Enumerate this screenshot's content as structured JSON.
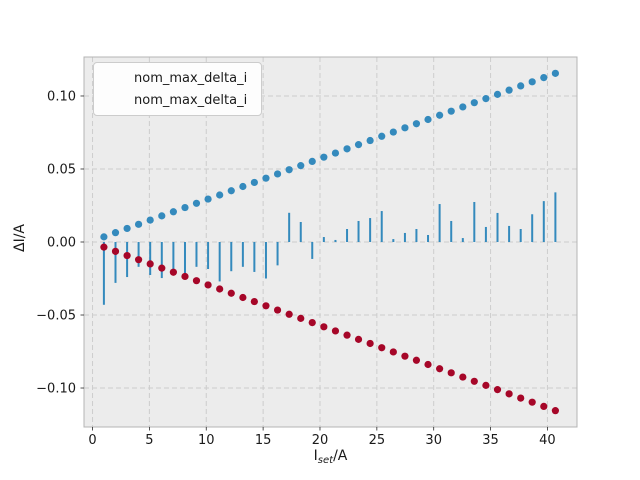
{
  "chart_data": {
    "type": "scatter",
    "title": "",
    "xlabel": {
      "base": "I",
      "sub": "set",
      "rest": "/A"
    },
    "ylabel": "ΔI/A",
    "xlim": [
      -0.75,
      42.6
    ],
    "ylim": [
      -0.1267,
      0.1267
    ],
    "grid": true,
    "grid_style": "dashed",
    "legend_position": "upper left",
    "xticks": {
      "values": [
        0,
        5,
        10,
        15,
        20,
        25,
        30,
        35,
        40
      ],
      "labels": [
        "0",
        "5",
        "10",
        "15",
        "20",
        "25",
        "30",
        "35",
        "40"
      ]
    },
    "yticks": {
      "values": [
        0.1,
        0.05,
        0.0,
        -0.05,
        -0.1
      ],
      "labels": [
        "0.10",
        "0.05",
        "0.00",
        "−0.05",
        "−0.10"
      ]
    },
    "x": [
      1.0,
      2.02,
      3.04,
      4.05,
      5.07,
      6.09,
      7.11,
      8.13,
      9.14,
      10.16,
      11.18,
      12.2,
      13.22,
      14.23,
      15.25,
      16.27,
      17.29,
      18.31,
      19.32,
      20.34,
      21.36,
      22.38,
      23.39,
      24.41,
      25.43,
      26.45,
      27.47,
      28.48,
      29.5,
      30.52,
      31.54,
      32.56,
      33.57,
      34.59,
      35.61,
      36.63,
      37.65,
      38.66,
      39.68,
      40.7
    ],
    "series": [
      {
        "name": "nom_max_delta_i",
        "type": "scatter",
        "color": "#348abd",
        "marker": "dot",
        "values": [
          0.0035,
          0.0064,
          0.0093,
          0.0121,
          0.015,
          0.0179,
          0.0207,
          0.0236,
          0.0265,
          0.0294,
          0.0322,
          0.0351,
          0.038,
          0.0408,
          0.0437,
          0.0466,
          0.0495,
          0.0523,
          0.0552,
          0.0581,
          0.0609,
          0.0638,
          0.0667,
          0.0695,
          0.0724,
          0.0753,
          0.0782,
          0.081,
          0.0839,
          0.0868,
          0.0896,
          0.0925,
          0.0954,
          0.0982,
          0.1011,
          0.104,
          0.1069,
          0.1097,
          0.1126,
          0.1155
        ]
      },
      {
        "name": "nom_max_delta_i",
        "type": "scatter",
        "color": "#a60628",
        "marker": "dot",
        "values": [
          -0.0035,
          -0.0064,
          -0.0093,
          -0.0121,
          -0.015,
          -0.0179,
          -0.0207,
          -0.0236,
          -0.0265,
          -0.0294,
          -0.0322,
          -0.0351,
          -0.038,
          -0.0408,
          -0.0437,
          -0.0466,
          -0.0495,
          -0.0523,
          -0.0552,
          -0.0581,
          -0.0609,
          -0.0638,
          -0.0667,
          -0.0695,
          -0.0724,
          -0.0753,
          -0.0782,
          -0.081,
          -0.0839,
          -0.0868,
          -0.0896,
          -0.0925,
          -0.0954,
          -0.0982,
          -0.1011,
          -0.104,
          -0.1069,
          -0.1097,
          -0.1126,
          -0.1155
        ]
      },
      {
        "name": "measured_delta_i_bars",
        "type": "bar",
        "color": "#348abd",
        "in_legend": false,
        "values": [
          -0.043,
          -0.028,
          -0.024,
          -0.017,
          -0.0226,
          -0.0247,
          -0.02,
          -0.0226,
          -0.017,
          -0.0185,
          -0.027,
          -0.02,
          -0.017,
          -0.0205,
          -0.025,
          -0.016,
          0.02,
          0.0137,
          -0.0116,
          0.0034,
          0.0014,
          0.0089,
          0.0144,
          0.0164,
          0.0212,
          0.002,
          0.0062,
          0.0089,
          0.0048,
          0.026,
          0.0144,
          0.0027,
          0.0274,
          0.0103,
          0.0199,
          0.011,
          0.0089,
          0.019,
          0.028,
          0.034
        ]
      }
    ],
    "legend": [
      {
        "label": "nom_max_delta_i",
        "color": "#348abd"
      },
      {
        "label": "nom_max_delta_i",
        "color": "#a60628"
      }
    ],
    "style": {
      "figure_bg": "#ffffff",
      "axes_bg": "#ececec",
      "grid_color": "#cdcdcd",
      "spine_color": "#b4b4b4",
      "tick_color": "#262626",
      "text_color": "#1a1a1a"
    }
  }
}
